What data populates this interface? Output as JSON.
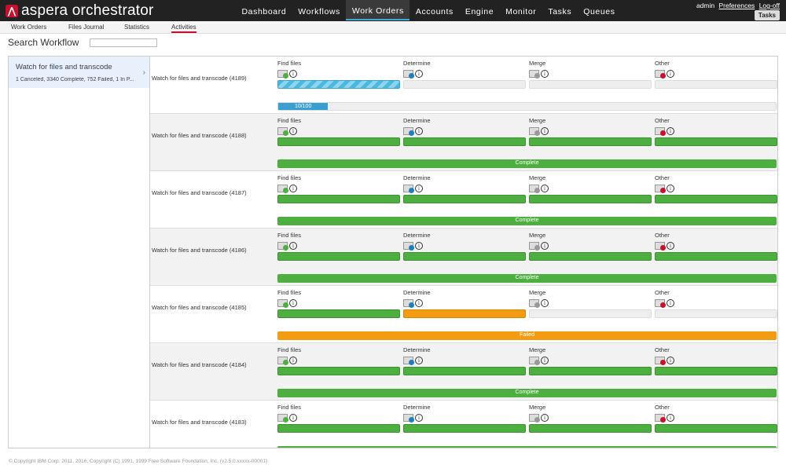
{
  "app": {
    "name": "aspera orchestrator"
  },
  "nav": [
    "Dashboard",
    "Workflows",
    "Work Orders",
    "Accounts",
    "Engine",
    "Monitor",
    "Tasks",
    "Queues"
  ],
  "nav_active": 2,
  "user": {
    "name": "admin",
    "preferences": "Preferences",
    "logoff": "Log-off",
    "tasks": "Tasks"
  },
  "subnav": [
    "Work Orders",
    "Files Journal",
    "Statistics",
    "Activities"
  ],
  "subnav_active": 3,
  "search": {
    "label": "Search Workflow",
    "value": ""
  },
  "workflow": {
    "title": "Watch for files and transcode",
    "summary": "1 Canceled, 3340 Complete, 752 Failed, 1 In P..."
  },
  "step_names": [
    "Find files",
    "Determine",
    "Merge",
    "Other"
  ],
  "runs": [
    {
      "label": "Watch for files and transcode (4189)",
      "steps": [
        "running",
        "pending",
        "pending",
        "pending"
      ],
      "overall": "10/100",
      "overall_state": "progress",
      "progress": 0.1
    },
    {
      "label": "Watch for files and transcode (4188)",
      "steps": [
        "done",
        "done",
        "done",
        "done"
      ],
      "overall": "Complete",
      "overall_state": "green"
    },
    {
      "label": "Watch for files and transcode (4187)",
      "steps": [
        "done",
        "done",
        "done",
        "done"
      ],
      "overall": "Complete",
      "overall_state": "green"
    },
    {
      "label": "Watch for files and transcode (4186)",
      "steps": [
        "done",
        "done",
        "done",
        "done"
      ],
      "overall": "Complete",
      "overall_state": "green"
    },
    {
      "label": "Watch for files and transcode (4185)",
      "steps": [
        "done",
        "failed",
        "pending",
        "pending"
      ],
      "overall": "Failed",
      "overall_state": "orange"
    },
    {
      "label": "Watch for files and transcode (4184)",
      "steps": [
        "done",
        "done",
        "done",
        "done"
      ],
      "overall": "Complete",
      "overall_state": "green"
    },
    {
      "label": "Watch for files and transcode (4183)",
      "steps": [
        "done",
        "done",
        "done",
        "done"
      ],
      "overall": "",
      "overall_state": "green"
    }
  ],
  "step_icon_colors": [
    "#4caf3f",
    "#1e7fc0",
    "#999999",
    "#c8102e"
  ],
  "footer": "© Copyright IBM Corp. 2011, 2016, Copyright (C) 1991, 1999 Free Software Foundation, Inc. (v2.5.0.xxxxx-00001)"
}
